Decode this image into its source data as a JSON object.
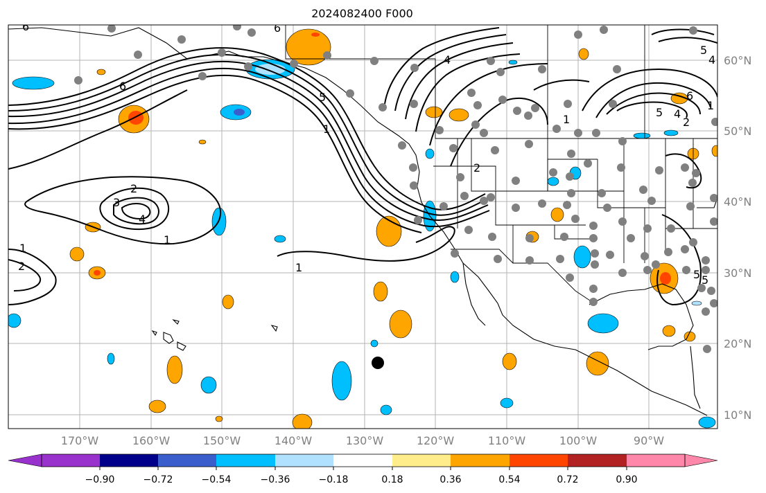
{
  "title": "2024082400 F000",
  "longitude_labels": [
    "170°W",
    "160°W",
    "150°W",
    "140°W",
    "130°W",
    "120°W",
    "110°W",
    "100°W",
    "90°W"
  ],
  "latitude_labels": [
    "60°N",
    "50°N",
    "40°N",
    "30°N",
    "20°N",
    "10°N"
  ],
  "colorbar": {
    "ticks": [
      "−0.90",
      "−0.72",
      "−0.54",
      "−0.36",
      "−0.18",
      "0.18",
      "0.36",
      "0.54",
      "0.72",
      "0.90"
    ],
    "colors": [
      "#9932cc",
      "#00008b",
      "#3a5fcd",
      "#00bfff",
      "#b0e2ff",
      "#ffffff",
      "#ffec8b",
      "#ffa500",
      "#ff4500",
      "#b22222",
      "#ff88aa"
    ]
  },
  "contour_labels": [
    "6",
    "6",
    "4",
    "5",
    "1",
    "5",
    "4",
    "2",
    "6",
    "1",
    "2",
    "3",
    "4",
    "1",
    "1",
    "2",
    "1",
    "6",
    "5",
    "4",
    "2",
    "1",
    "5",
    "5"
  ],
  "colors": {
    "axis_label": "#808080",
    "station": "#808080",
    "marker": "#000000"
  }
}
